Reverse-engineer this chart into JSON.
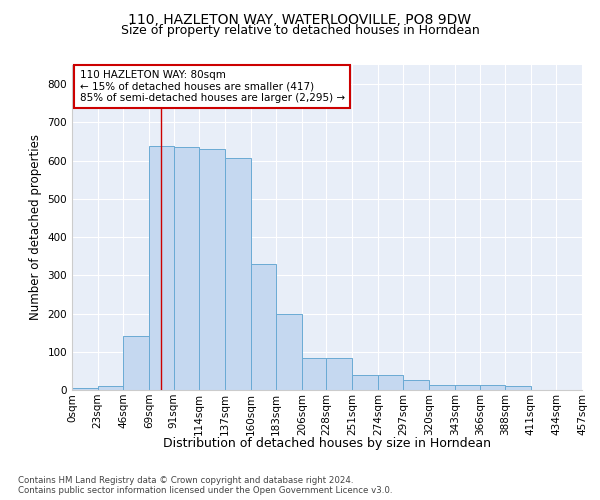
{
  "title1": "110, HAZLETON WAY, WATERLOOVILLE, PO8 9DW",
  "title2": "Size of property relative to detached houses in Horndean",
  "xlabel": "Distribution of detached houses by size in Horndean",
  "ylabel": "Number of detached properties",
  "footnote": "Contains HM Land Registry data © Crown copyright and database right 2024.\nContains public sector information licensed under the Open Government Licence v3.0.",
  "annotation_line1": "110 HAZLETON WAY: 80sqm",
  "annotation_line2": "← 15% of detached houses are smaller (417)",
  "annotation_line3": "85% of semi-detached houses are larger (2,295) →",
  "bar_color": "#c5d8f0",
  "bar_edge_color": "#6aaad4",
  "vline_color": "#cc0000",
  "annotation_box_color": "#cc0000",
  "bin_edges": [
    0,
    23,
    46,
    69,
    91,
    114,
    137,
    160,
    183,
    206,
    228,
    251,
    274,
    297,
    320,
    343,
    366,
    388,
    411,
    434,
    457
  ],
  "bin_labels": [
    "0sqm",
    "23sqm",
    "46sqm",
    "69sqm",
    "91sqm",
    "114sqm",
    "137sqm",
    "160sqm",
    "183sqm",
    "206sqm",
    "228sqm",
    "251sqm",
    "274sqm",
    "297sqm",
    "320sqm",
    "343sqm",
    "366sqm",
    "388sqm",
    "411sqm",
    "434sqm",
    "457sqm"
  ],
  "bar_heights": [
    5,
    10,
    140,
    637,
    635,
    630,
    607,
    330,
    200,
    85,
    85,
    40,
    40,
    25,
    12,
    12,
    12,
    10,
    0,
    0,
    5
  ],
  "vline_x": 80,
  "ylim": [
    0,
    850
  ],
  "yticks": [
    0,
    100,
    200,
    300,
    400,
    500,
    600,
    700,
    800
  ],
  "bg_color": "#e8eef8",
  "fig_bg_color": "#ffffff",
  "grid_color": "#ffffff",
  "title1_fontsize": 10,
  "title2_fontsize": 9,
  "annotation_fontsize": 7.5,
  "tick_fontsize": 7.5,
  "ylabel_fontsize": 8.5,
  "xlabel_fontsize": 9
}
